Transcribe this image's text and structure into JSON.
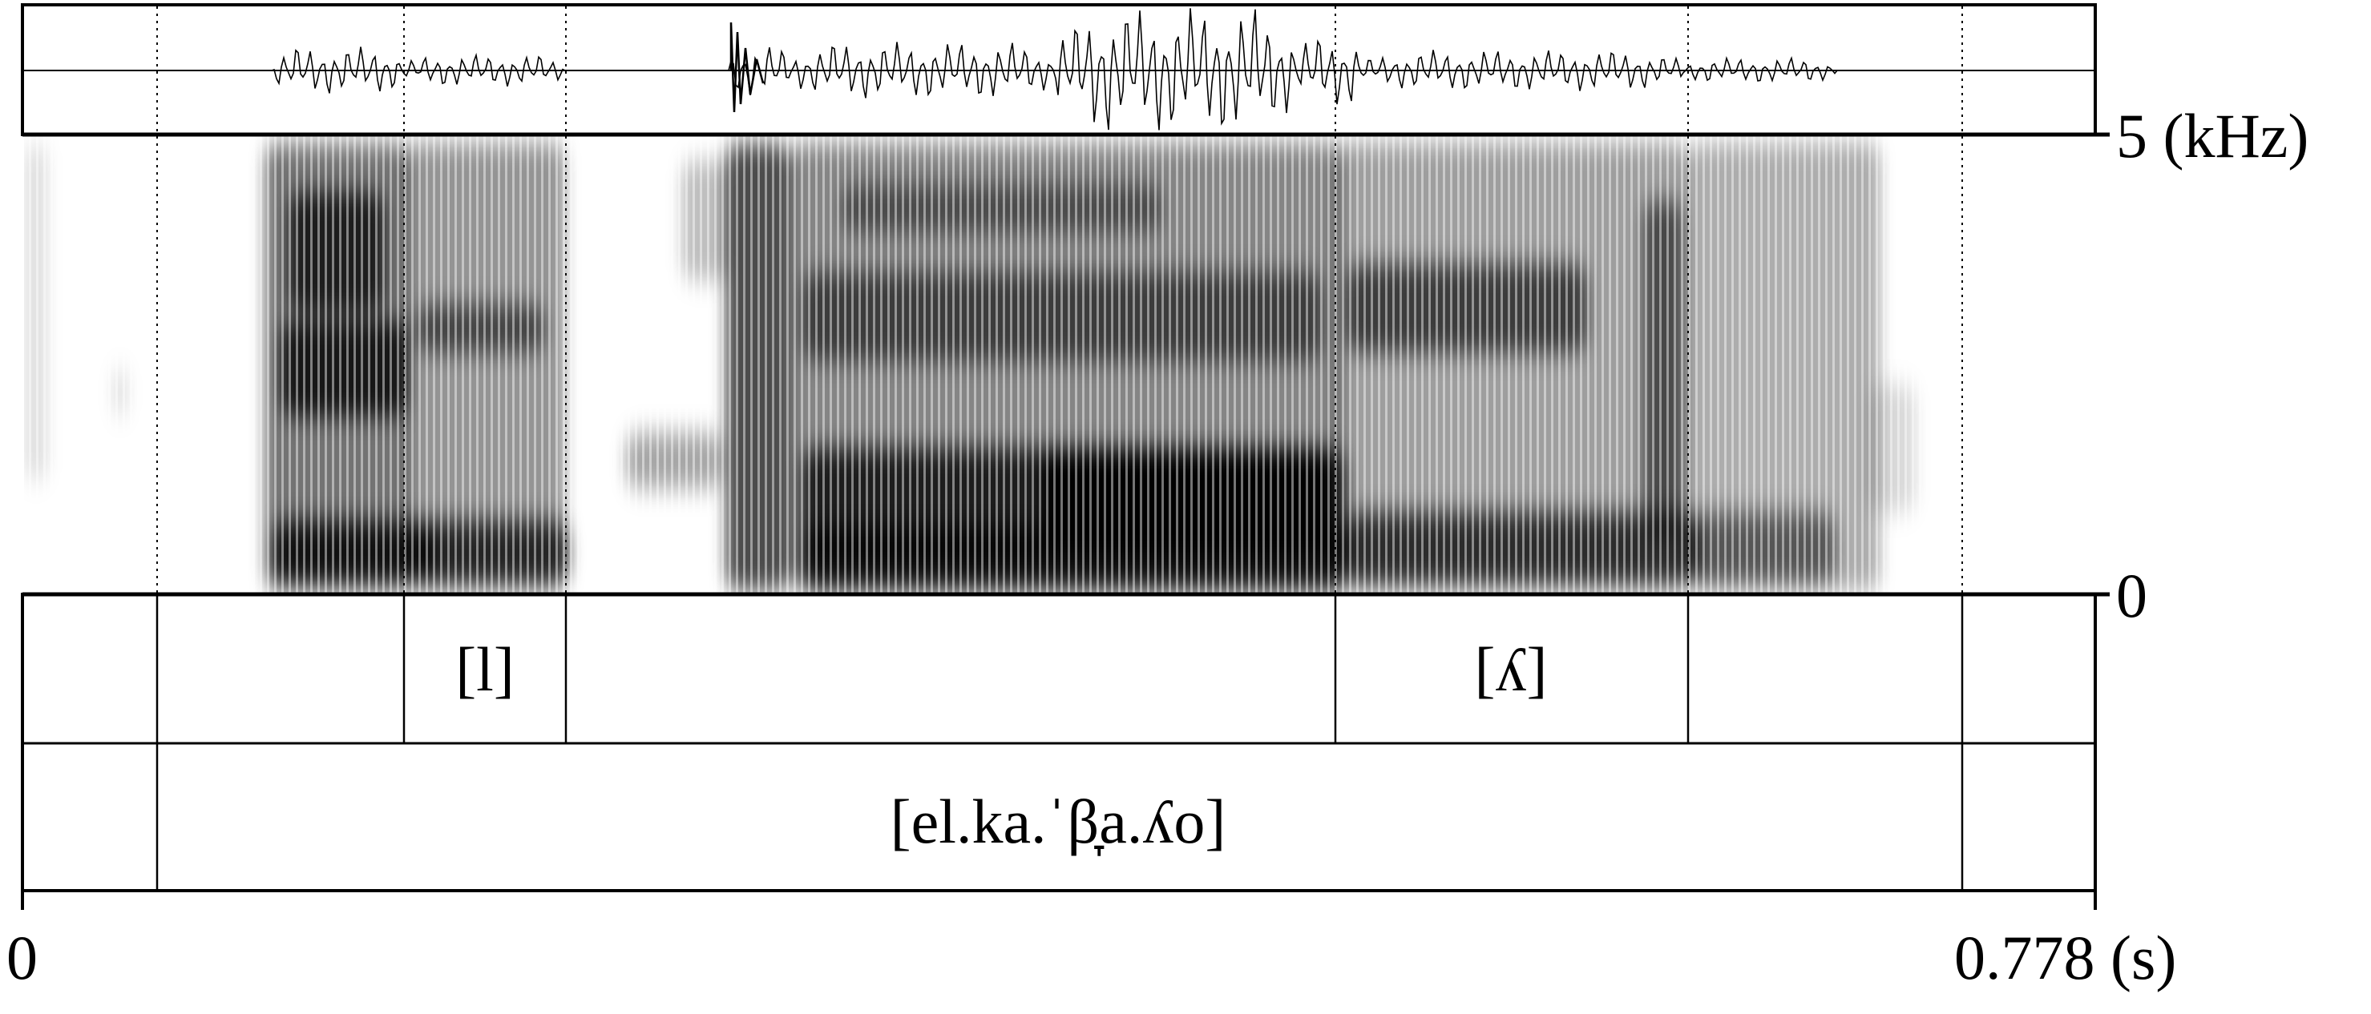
{
  "frequency_axis": {
    "top_label": "5 (kHz)",
    "bottom_label": "0"
  },
  "time_axis": {
    "start_label": "0",
    "end_label": "0.778 (s)"
  },
  "tiers": {
    "segment_tier": {
      "labels": [
        "[l]",
        "[ʎ]"
      ]
    },
    "word_tier": {
      "labels": [
        "[el.ka.ˈβ̞a.ʎo]"
      ]
    }
  }
}
